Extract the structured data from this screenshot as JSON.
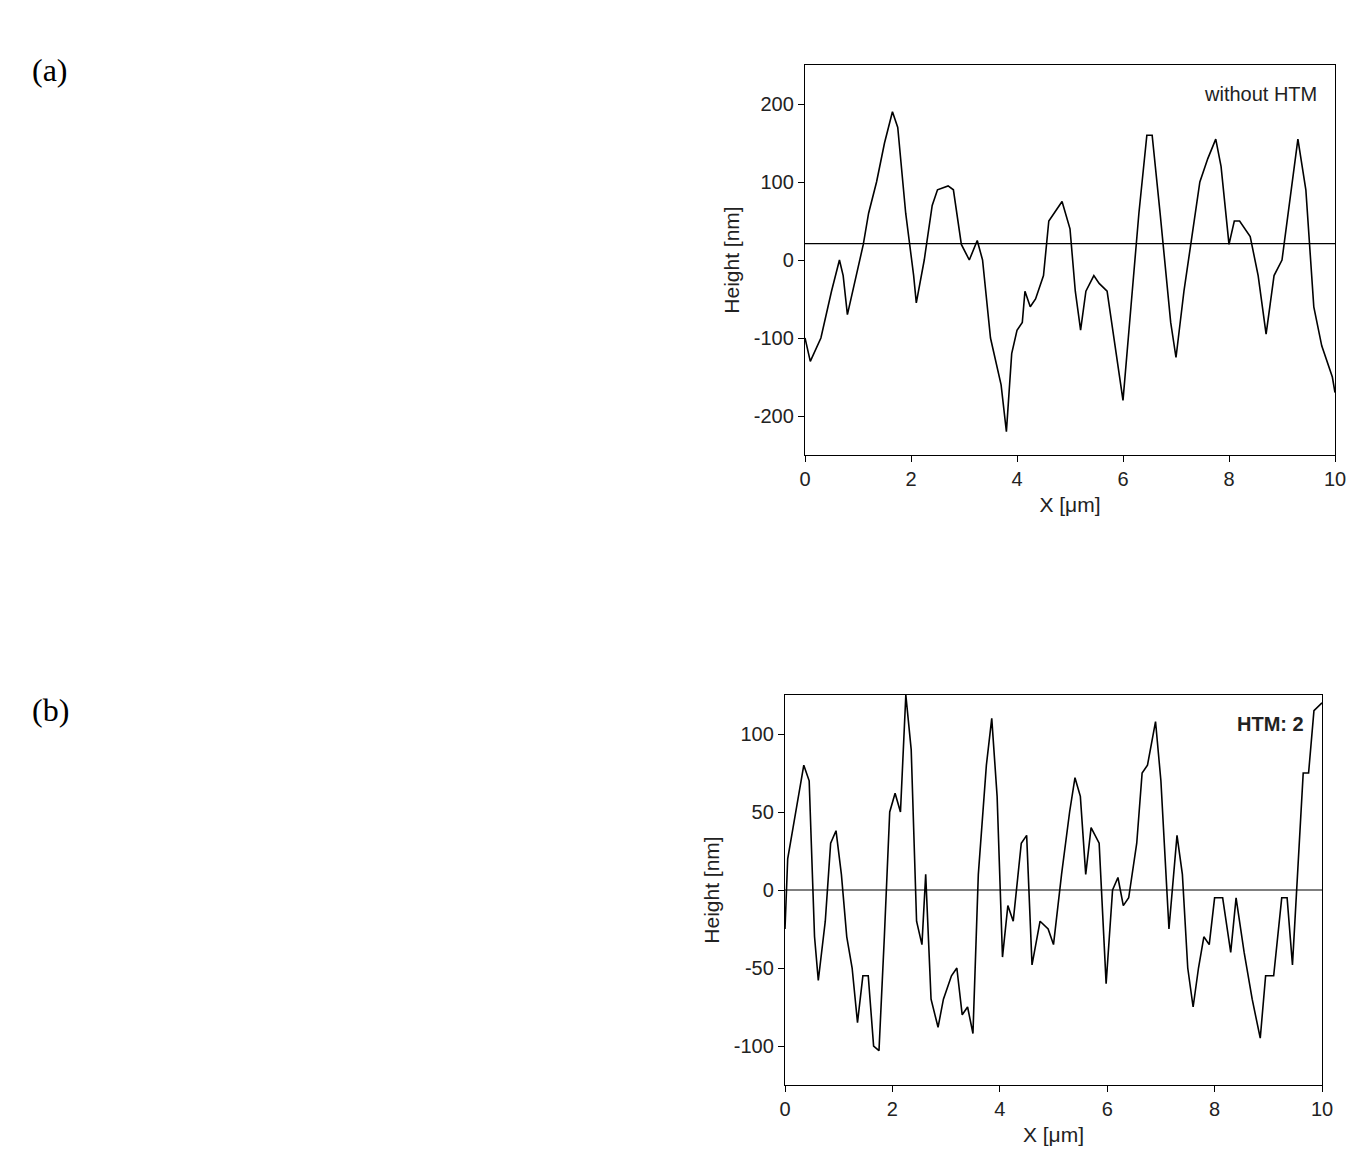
{
  "chart_data": [
    {
      "type": "line",
      "panel": "(a)",
      "annotation": "without HTM",
      "xlabel": "X [μm]",
      "ylabel": "Height [nm]",
      "xlim": [
        0,
        10
      ],
      "xticks": [
        0,
        2,
        4,
        6,
        8,
        10
      ],
      "ylim": [
        -250,
        250
      ],
      "yticks": [
        -200,
        -100,
        0,
        100,
        200
      ],
      "hline": 21,
      "color": "#000000",
      "grid": false,
      "x": [
        0,
        0.1,
        0.3,
        0.5,
        0.65,
        0.72,
        0.8,
        0.9,
        1.0,
        1.1,
        1.2,
        1.35,
        1.5,
        1.65,
        1.75,
        1.9,
        2.05,
        2.1,
        2.25,
        2.4,
        2.5,
        2.7,
        2.8,
        2.95,
        3.1,
        3.25,
        3.35,
        3.5,
        3.7,
        3.8,
        3.9,
        4.0,
        4.1,
        4.15,
        4.25,
        4.35,
        4.5,
        4.6,
        4.7,
        4.85,
        5.0,
        5.1,
        5.2,
        5.3,
        5.45,
        5.55,
        5.7,
        5.9,
        6.0,
        6.15,
        6.3,
        6.45,
        6.55,
        6.7,
        6.9,
        7.0,
        7.15,
        7.3,
        7.45,
        7.6,
        7.75,
        7.85,
        8.0,
        8.1,
        8.2,
        8.4,
        8.55,
        8.7,
        8.85,
        9.0,
        9.15,
        9.3,
        9.45,
        9.6,
        9.75,
        9.95,
        10
      ],
      "values": [
        -100,
        -130,
        -100,
        -40,
        0,
        -20,
        -70,
        -40,
        -10,
        20,
        60,
        100,
        150,
        190,
        170,
        60,
        -20,
        -55,
        0,
        70,
        90,
        95,
        90,
        20,
        0,
        25,
        0,
        -100,
        -160,
        -220,
        -120,
        -90,
        -80,
        -40,
        -60,
        -50,
        -20,
        50,
        60,
        75,
        40,
        -40,
        -90,
        -40,
        -20,
        -30,
        -40,
        -130,
        -180,
        -60,
        60,
        160,
        160,
        60,
        -80,
        -125,
        -40,
        30,
        100,
        130,
        155,
        120,
        20,
        50,
        50,
        30,
        -20,
        -95,
        -20,
        0,
        80,
        155,
        90,
        -60,
        -110,
        -150,
        -170
      ]
    },
    {
      "type": "line",
      "panel": "(b)",
      "annotation": "HTM: 2",
      "xlabel": "X [μm]",
      "ylabel": "Height [nm]",
      "xlim": [
        0,
        10
      ],
      "xticks": [
        0,
        2,
        4,
        6,
        8,
        10
      ],
      "ylim": [
        -125,
        125
      ],
      "yticks": [
        -100,
        -50,
        0,
        50,
        100
      ],
      "hline": 0,
      "color": "#000000",
      "grid": false,
      "x": [
        0,
        0.05,
        0.15,
        0.25,
        0.35,
        0.45,
        0.55,
        0.62,
        0.75,
        0.85,
        0.95,
        1.05,
        1.15,
        1.25,
        1.35,
        1.45,
        1.55,
        1.65,
        1.75,
        1.85,
        1.95,
        2.05,
        2.15,
        2.25,
        2.35,
        2.45,
        2.55,
        2.62,
        2.72,
        2.85,
        2.95,
        3.1,
        3.2,
        3.3,
        3.4,
        3.5,
        3.6,
        3.75,
        3.85,
        3.95,
        4.05,
        4.15,
        4.25,
        4.4,
        4.5,
        4.6,
        4.75,
        4.9,
        5.0,
        5.15,
        5.3,
        5.4,
        5.5,
        5.6,
        5.7,
        5.85,
        5.98,
        6.1,
        6.2,
        6.3,
        6.4,
        6.55,
        6.65,
        6.75,
        6.9,
        7.0,
        7.15,
        7.3,
        7.4,
        7.5,
        7.6,
        7.7,
        7.8,
        7.9,
        8.0,
        8.15,
        8.3,
        8.4,
        8.55,
        8.7,
        8.85,
        8.95,
        9.1,
        9.25,
        9.35,
        9.45,
        9.55,
        9.65,
        9.75,
        9.85,
        10
      ],
      "values": [
        -25,
        20,
        40,
        60,
        80,
        70,
        -30,
        -58,
        -20,
        30,
        38,
        10,
        -30,
        -50,
        -85,
        -55,
        -55,
        -100,
        -103,
        -30,
        50,
        62,
        50,
        125,
        90,
        -20,
        -35,
        10,
        -70,
        -88,
        -70,
        -55,
        -50,
        -80,
        -75,
        -92,
        10,
        80,
        110,
        60,
        -43,
        -10,
        -20,
        30,
        35,
        -48,
        -20,
        -25,
        -35,
        10,
        50,
        72,
        60,
        10,
        40,
        30,
        -60,
        0,
        8,
        -10,
        -5,
        30,
        75,
        80,
        108,
        70,
        -25,
        35,
        10,
        -50,
        -75,
        -50,
        -30,
        -35,
        -5,
        -5,
        -40,
        -5,
        -40,
        -70,
        -95,
        -55,
        -55,
        -5,
        -5,
        -48,
        10,
        75,
        75,
        115,
        120
      ]
    }
  ]
}
